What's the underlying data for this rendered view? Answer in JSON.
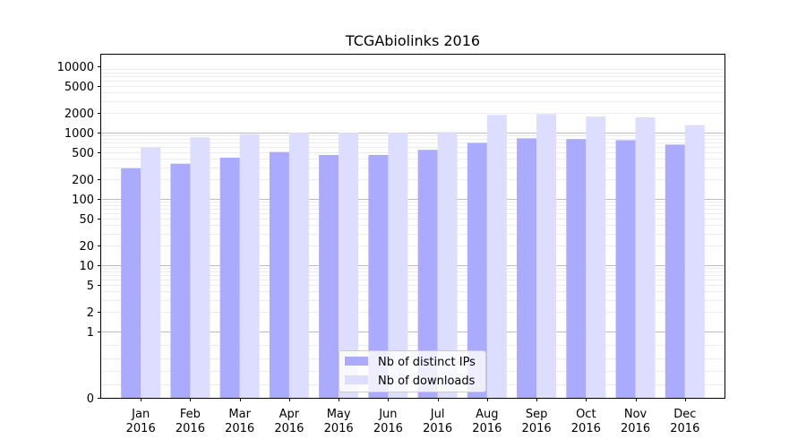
{
  "chart_data": {
    "type": "bar",
    "title": "TCGAbiolinks 2016",
    "xlabel": "",
    "ylabel": "",
    "categories": [
      [
        "Jan",
        "2016"
      ],
      [
        "Feb",
        "2016"
      ],
      [
        "Mar",
        "2016"
      ],
      [
        "Apr",
        "2016"
      ],
      [
        "May",
        "2016"
      ],
      [
        "Jun",
        "2016"
      ],
      [
        "Jul",
        "2016"
      ],
      [
        "Aug",
        "2016"
      ],
      [
        "Sep",
        "2016"
      ],
      [
        "Oct",
        "2016"
      ],
      [
        "Nov",
        "2016"
      ],
      [
        "Dec",
        "2016"
      ]
    ],
    "yscale": "symlog",
    "ylim": [
      0,
      15000
    ],
    "yticks": [
      0,
      1,
      2,
      5,
      10,
      20,
      50,
      100,
      200,
      500,
      1000,
      2000,
      5000,
      10000
    ],
    "ytick_labels": [
      "0",
      "1",
      "2",
      "5",
      "10",
      "20",
      "50",
      "100",
      "200",
      "500",
      "1000",
      "2000",
      "5000",
      "10000"
    ],
    "major_grid_at": [
      1,
      10,
      100,
      1000
    ],
    "grid": true,
    "legend_position": "bottom-center",
    "series": [
      {
        "name": "Nb of distinct IPs",
        "color": "#aaaaff",
        "values": [
          290,
          340,
          420,
          510,
          460,
          460,
          550,
          700,
          820,
          800,
          770,
          660
        ]
      },
      {
        "name": "Nb of downloads",
        "color": "#ddddff",
        "values": [
          600,
          850,
          950,
          1000,
          1000,
          1000,
          1020,
          1850,
          1900,
          1750,
          1700,
          1300
        ]
      }
    ]
  }
}
